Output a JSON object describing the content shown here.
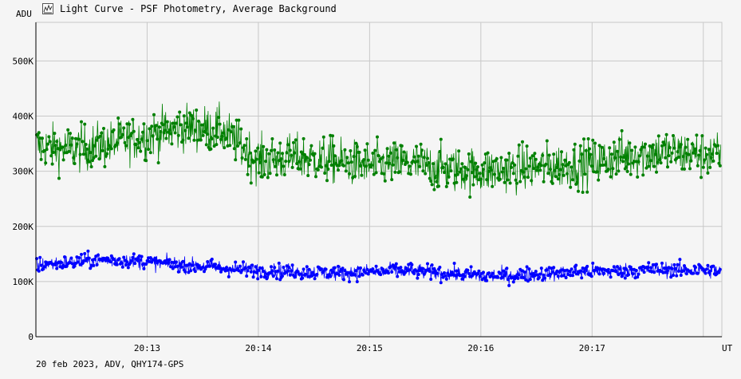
{
  "window": {
    "title": "Light Curve - PSF Photometry, Average Background"
  },
  "icons": {
    "app": "light-curve-app-icon"
  },
  "footer": {
    "caption": "20 feb 2023, ADV, QHY174-GPS"
  },
  "colors": {
    "background": "#f5f5f5",
    "grid": "#c8c8c8",
    "axis": "#000000",
    "series_green": "#008000",
    "series_blue": "#0000ff"
  },
  "chart_data": {
    "type": "line",
    "title": "Light Curve - PSF Photometry, Average Background",
    "ylabel": "ADU",
    "xlabel": "UT",
    "ylim": [
      0,
      570000
    ],
    "xlim": [
      "20:12:00",
      "20:18:10"
    ],
    "grid": true,
    "y_ticks": [
      {
        "value": 0,
        "label": "0"
      },
      {
        "value": 100000,
        "label": "100K"
      },
      {
        "value": 200000,
        "label": "200K"
      },
      {
        "value": 300000,
        "label": "300K"
      },
      {
        "value": 400000,
        "label": "400K"
      },
      {
        "value": 500000,
        "label": "500K"
      }
    ],
    "x_ticks": [
      {
        "value": "20:13:00",
        "label": "20:13"
      },
      {
        "value": "20:14:00",
        "label": "20:14"
      },
      {
        "value": "20:15:00",
        "label": "20:15"
      },
      {
        "value": "20:16:00",
        "label": "20:16"
      },
      {
        "value": "20:17:00",
        "label": "20:17"
      },
      {
        "value": "20:18:00",
        "label": ""
      }
    ],
    "series": [
      {
        "color": "#008000",
        "x": [
          "20:12:00",
          "20:12:20",
          "20:12:40",
          "20:13:00",
          "20:13:20",
          "20:13:40",
          "20:14:00",
          "20:14:20",
          "20:14:40",
          "20:15:00",
          "20:15:20",
          "20:15:40",
          "20:16:00",
          "20:16:20",
          "20:16:40",
          "20:17:00",
          "20:17:20",
          "20:17:40",
          "20:18:00",
          "20:18:10"
        ],
        "values": [
          345000,
          340000,
          350000,
          365000,
          380000,
          375000,
          320000,
          325000,
          320000,
          310000,
          315000,
          305000,
          300000,
          305000,
          310000,
          315000,
          330000,
          335000,
          330000,
          330000
        ],
        "spread": 75000
      },
      {
        "color": "#0000ff",
        "x": [
          "20:12:00",
          "20:12:20",
          "20:12:40",
          "20:13:00",
          "20:13:20",
          "20:13:40",
          "20:14:00",
          "20:14:20",
          "20:14:40",
          "20:15:00",
          "20:15:20",
          "20:15:40",
          "20:16:00",
          "20:16:20",
          "20:16:40",
          "20:17:00",
          "20:17:20",
          "20:17:40",
          "20:18:00",
          "20:18:10"
        ],
        "values": [
          130000,
          135000,
          140000,
          135000,
          130000,
          125000,
          120000,
          118000,
          115000,
          118000,
          120000,
          115000,
          110000,
          112000,
          115000,
          118000,
          120000,
          122000,
          120000,
          120000
        ],
        "spread": 25000
      }
    ]
  }
}
